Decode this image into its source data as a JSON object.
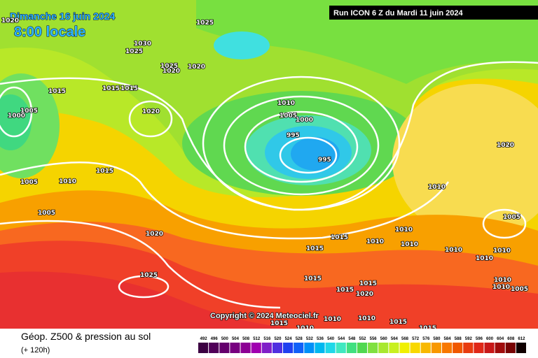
{
  "header": {
    "date": "Dimanche 16 juin 2024",
    "time": "8:00 locale",
    "run": "Run ICON 6 Z du Mardi 11 juin 2024"
  },
  "copyright": "Copyright © 2024 Meteociel.fr",
  "footer": {
    "title": "Géop. Z500 & pression au sol",
    "lead": "(+ 120h)"
  },
  "isobar_labels": [
    1020,
    1025,
    1030,
    1025,
    1025,
    1020,
    1020,
    1015,
    1015,
    1015,
    1005,
    1000,
    1020,
    1010,
    1005,
    1000,
    995,
    995,
    1015,
    1005,
    1010,
    1005,
    1020,
    1020,
    1010,
    1005,
    1010,
    1015,
    1010,
    1015,
    1010,
    1010,
    1010,
    1010,
    1025,
    1015,
    1010,
    1010,
    1005,
    1015,
    1015,
    1020,
    1015,
    1010,
    1010,
    1010,
    1015,
    1015
  ],
  "legend": {
    "values": [
      492,
      496,
      500,
      504,
      508,
      512,
      516,
      520,
      524,
      528,
      532,
      536,
      540,
      544,
      548,
      552,
      556,
      560,
      564,
      568,
      572,
      576,
      580,
      584,
      588,
      592,
      596,
      600,
      604,
      608,
      612
    ],
    "colors": [
      "#3c0042",
      "#500058",
      "#64006c",
      "#780080",
      "#8c0094",
      "#a000b0",
      "#8020c8",
      "#5030e0",
      "#2040f0",
      "#1060f8",
      "#0090f8",
      "#00b8f0",
      "#20d8e8",
      "#40e8c0",
      "#40e080",
      "#50d850",
      "#80e040",
      "#a8e830",
      "#c8f020",
      "#f0f000",
      "#f8d800",
      "#f8b800",
      "#f89800",
      "#f87800",
      "#f05800",
      "#e83c10",
      "#e02818",
      "#c81818",
      "#a00c0c",
      "#780404",
      "#100000"
    ]
  }
}
